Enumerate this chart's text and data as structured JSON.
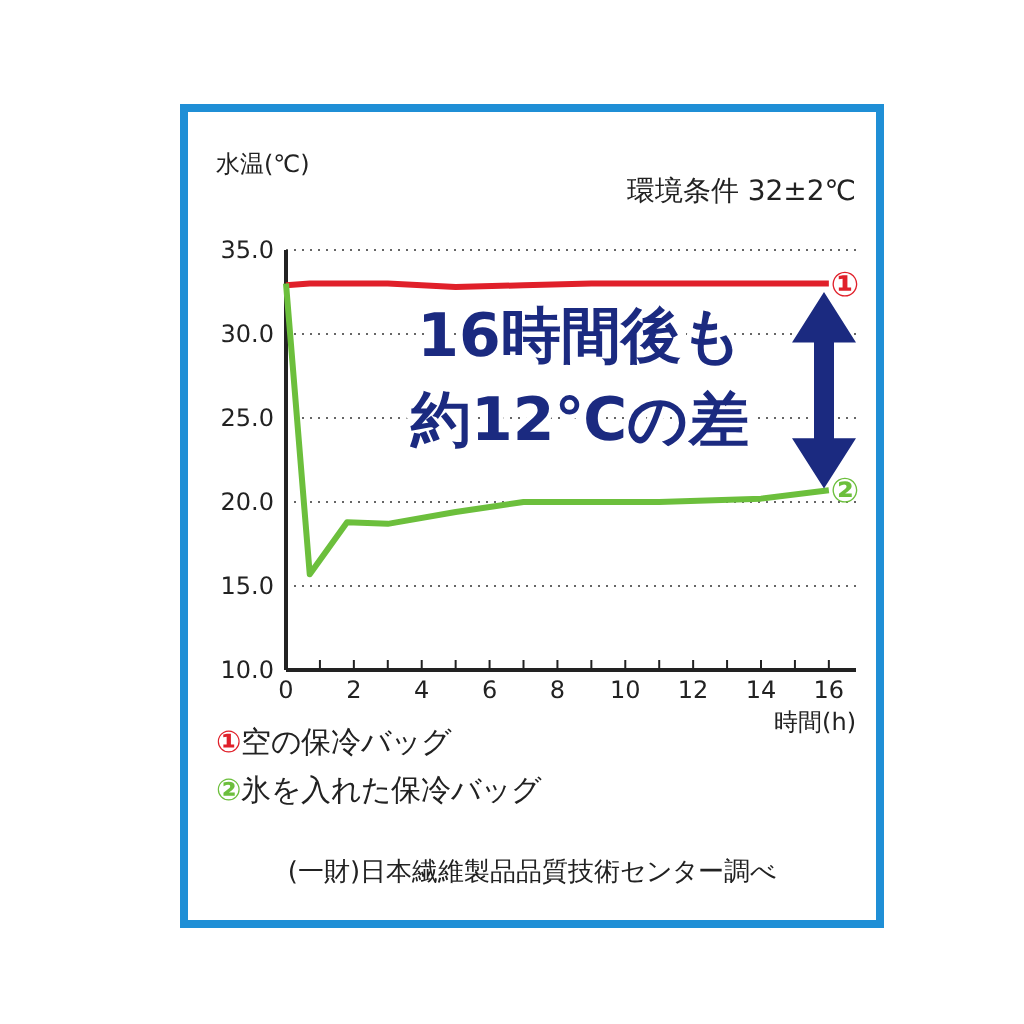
{
  "chart_data": {
    "type": "line",
    "subtitle": "環境条件 32±2℃",
    "ylabel": "水温(℃)",
    "xlabel": "時間(h)",
    "x": [
      0,
      0.7,
      1.8,
      3,
      5,
      7,
      9,
      11,
      14,
      16
    ],
    "series": [
      {
        "name": "①空の保冷バッグ",
        "color": "#e0202a",
        "values": [
          32.9,
          33.0,
          33.0,
          33.0,
          32.8,
          32.9,
          33.0,
          33.0,
          33.0,
          33.0
        ]
      },
      {
        "name": "②氷を入れた保冷バッグ",
        "color": "#6cbf3c",
        "values": [
          33.0,
          15.7,
          18.8,
          18.7,
          19.4,
          20.0,
          20.0,
          20.0,
          20.2,
          20.7
        ]
      }
    ],
    "xlim": [
      0,
      16.8
    ],
    "ylim": [
      10,
      35
    ],
    "xticks": [
      0,
      {
        "value": 1,
        "label": null
      },
      2,
      {
        "value": 3,
        "label": null
      },
      4,
      {
        "value": 5,
        "label": null
      },
      6,
      {
        "value": 7,
        "label": null
      },
      8,
      {
        "value": 9,
        "label": null
      },
      10,
      {
        "value": 11,
        "label": null
      },
      12,
      {
        "value": 13,
        "label": null
      },
      14,
      {
        "value": 15,
        "label": null
      },
      16
    ],
    "yticks": [
      {
        "value": 10,
        "label": "10.0"
      },
      {
        "value": 15,
        "label": "15.0"
      },
      {
        "value": 20,
        "label": "20.0"
      },
      {
        "value": 25,
        "label": "25.0"
      },
      {
        "value": 30,
        "label": "30.0"
      },
      {
        "value": 35,
        "label": "35.0"
      }
    ],
    "grid": "y",
    "legend": "bottom",
    "line_style": "solid",
    "annotations": [
      {
        "text": "①",
        "x": 16,
        "y": 33.0
      },
      {
        "text": "②",
        "x": 16,
        "y": 20.7
      },
      "16時間後も",
      "約12℃の差",
      "(一財)日本繊維製品品質技術センター調べ"
    ]
  }
}
